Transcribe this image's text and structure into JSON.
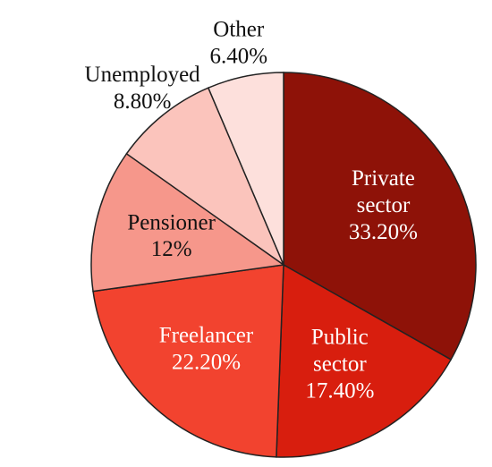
{
  "chart_data": {
    "type": "pie",
    "categories": [
      "Private sector",
      "Public sector",
      "Freelancer",
      "Pensioner",
      "Unemployed",
      "Other"
    ],
    "values": [
      33.2,
      17.4,
      22.2,
      12,
      8.8,
      6.4
    ],
    "value_labels": [
      "33.20%",
      "17.40%",
      "22.20%",
      "12%",
      "8.80%",
      "6.40%"
    ],
    "colors": [
      "#8e1208",
      "#d81e0e",
      "#f2432f",
      "#f6978b",
      "#fbc4bc",
      "#fde0dc"
    ]
  }
}
